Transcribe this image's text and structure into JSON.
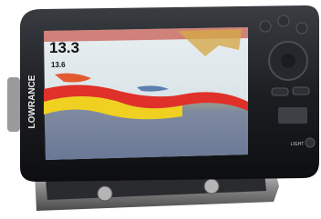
{
  "screen": {
    "depth": "13.3",
    "sub_depth": "13.6"
  },
  "device": {
    "brand": "LOWRANCE",
    "light_button": "LIGHT"
  }
}
